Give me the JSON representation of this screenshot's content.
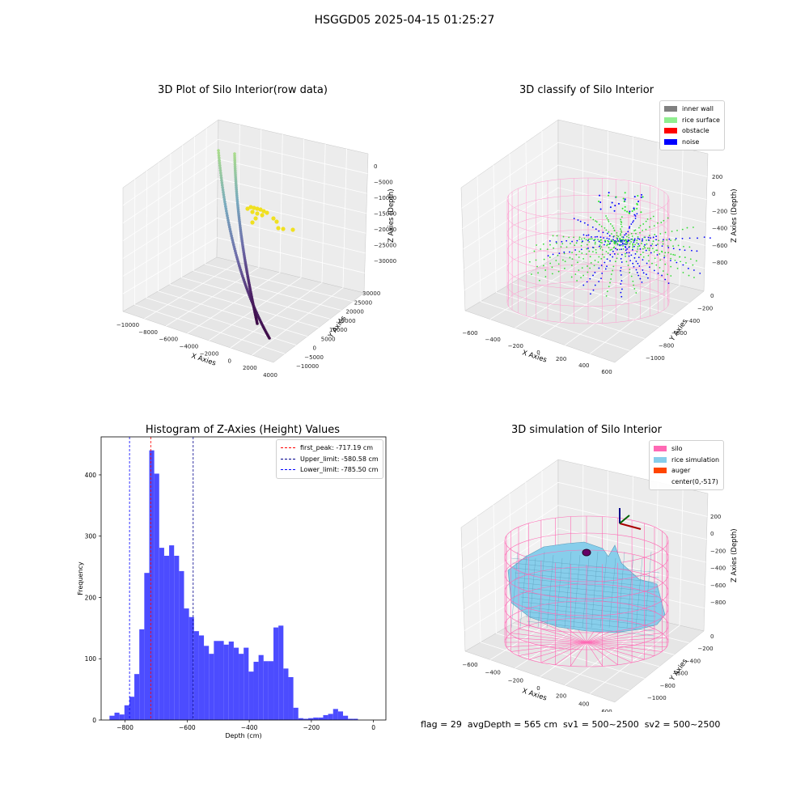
{
  "figure": {
    "suptitle": "HSGGD05 2025-04-15 01:25:27"
  },
  "panels": {
    "raw": {
      "title": "3D Plot of Silo Interior(row data)",
      "xlabel": "X Axies",
      "ylabel": "Y Axies",
      "zlabel": "Z Axies (Depth)",
      "xticks": [
        "−10000",
        "−8000",
        "−6000",
        "−4000",
        "−2000",
        "0",
        "2000",
        "4000"
      ],
      "yticks": [
        "−10000",
        "−5000",
        "0",
        "5000",
        "10000",
        "15000",
        "20000",
        "25000",
        "30000"
      ],
      "zticks": [
        "0",
        "−5000",
        "−10000",
        "−15000",
        "−20000",
        "−25000",
        "−30000"
      ]
    },
    "classify": {
      "title": "3D classify of Silo Interior",
      "xlabel": "X Axies",
      "ylabel": "Y Axies",
      "zlabel": "Z Axies (Depth)",
      "xticks": [
        "−600",
        "−400",
        "−200",
        "0",
        "200",
        "400",
        "600"
      ],
      "yticks": [
        "−1000",
        "−800",
        "−600",
        "−400",
        "−200",
        "0"
      ],
      "zticks": [
        "200",
        "0",
        "−200",
        "−400",
        "−600",
        "−800"
      ],
      "legend": [
        {
          "label": "inner wall",
          "color": "#808080"
        },
        {
          "label": "rice surface",
          "color": "#90ee90"
        },
        {
          "label": "obstacle",
          "color": "#ff0000"
        },
        {
          "label": "noise",
          "color": "#0000ff"
        }
      ]
    },
    "hist": {
      "title": "Histogram of Z-Axies (Height) Values",
      "legend": [
        {
          "label": "first_peak: -717.19 cm",
          "color": "#ff0000"
        },
        {
          "label": "Upper_limit: -580.58 cm",
          "color": "#00008b"
        },
        {
          "label": "Lower_limit: -785.50 cm",
          "color": "#0000ff"
        }
      ]
    },
    "sim": {
      "title": "3D simulation of Silo Interior",
      "xlabel": "X Axies",
      "ylabel": "Y Axies",
      "zlabel": "Z Axies (Depth)",
      "xticks": [
        "−600",
        "−400",
        "−200",
        "0",
        "200",
        "400",
        "600"
      ],
      "yticks": [
        "−1000",
        "−800",
        "−600",
        "−400",
        "−200",
        "0"
      ],
      "zticks": [
        "200",
        "0",
        "−200",
        "−400",
        "−600",
        "−800"
      ],
      "legend": [
        {
          "label": "silo",
          "color": "#ff69b4"
        },
        {
          "label": "rice simulation",
          "color": "#87ceeb"
        },
        {
          "label": "auger",
          "color": "#ff4500"
        },
        {
          "label": "center(0,-517)",
          "color": ""
        }
      ]
    }
  },
  "footer": "flag = 29  avgDepth = 565 cm  sv1 = 500~2500  sv2 = 500~2500",
  "chart_data": [
    {
      "type": "bar",
      "title": "Histogram of Z-Axies (Height) Values",
      "xlabel": "Depth (cm)",
      "ylabel": "Frequency",
      "xlim": [
        -877,
        40
      ],
      "ylim": [
        0,
        462
      ],
      "xticks": [
        -800,
        -600,
        -400,
        -200,
        0
      ],
      "yticks": [
        0,
        100,
        200,
        300,
        400
      ],
      "bin_start": -850,
      "bin_width": 16,
      "values": [
        7,
        12,
        9,
        24,
        38,
        75,
        148,
        240,
        440,
        402,
        281,
        268,
        285,
        268,
        243,
        182,
        168,
        145,
        138,
        121,
        108,
        129,
        129,
        123,
        128,
        118,
        108,
        118,
        79,
        95,
        106,
        96,
        96,
        151,
        154,
        84,
        70,
        20,
        3,
        2,
        3,
        4,
        4,
        8,
        10,
        18,
        14,
        7,
        2,
        2
      ],
      "vlines": [
        {
          "x": -717.19,
          "label": "first_peak: -717.19 cm",
          "color": "#ff0000"
        },
        {
          "x": -580.58,
          "label": "Upper_limit: -580.58 cm",
          "color": "#00008b"
        },
        {
          "x": -785.5,
          "label": "Lower_limit: -785.50 cm",
          "color": "#0000ff"
        }
      ],
      "bar_color": "#4c4cff",
      "legend_position": "top-right",
      "grid": false
    },
    {
      "type": "scatter",
      "title": "3D Plot of Silo Interior(row data)",
      "projection": "3d",
      "xlabel": "X Axies",
      "ylabel": "Y Axies",
      "zlabel": "Z Axies (Depth)",
      "xlim": [
        -10000,
        4000
      ],
      "ylim": [
        -10000,
        30000
      ],
      "zlim": [
        -31000,
        0
      ],
      "grid": true
    },
    {
      "type": "scatter",
      "title": "3D classify of Silo Interior",
      "projection": "3d",
      "xlabel": "X Axies",
      "ylabel": "Y Axies",
      "zlabel": "Z Axies (Depth)",
      "xlim": [
        -600,
        600
      ],
      "ylim": [
        -1100,
        0
      ],
      "zlim": [
        -900,
        300
      ],
      "series": [
        {
          "name": "inner wall",
          "color": "#808080"
        },
        {
          "name": "rice surface",
          "color": "#90ee90"
        },
        {
          "name": "obstacle",
          "color": "#ff0000"
        },
        {
          "name": "noise",
          "color": "#0000ff"
        }
      ],
      "legend_position": "top-right",
      "grid": true
    },
    {
      "type": "area",
      "title": "3D simulation of Silo Interior",
      "projection": "3d",
      "xlabel": "X Axies",
      "ylabel": "Y Axies",
      "zlabel": "Z Axies (Depth)",
      "xlim": [
        -600,
        600
      ],
      "ylim": [
        -1100,
        0
      ],
      "zlim": [
        -900,
        300
      ],
      "series": [
        {
          "name": "silo",
          "color": "#ff69b4"
        },
        {
          "name": "rice simulation",
          "color": "#87ceeb"
        },
        {
          "name": "auger",
          "color": "#ff4500"
        },
        {
          "name": "center(0,-517)"
        }
      ],
      "legend_position": "top-right",
      "grid": true
    }
  ]
}
